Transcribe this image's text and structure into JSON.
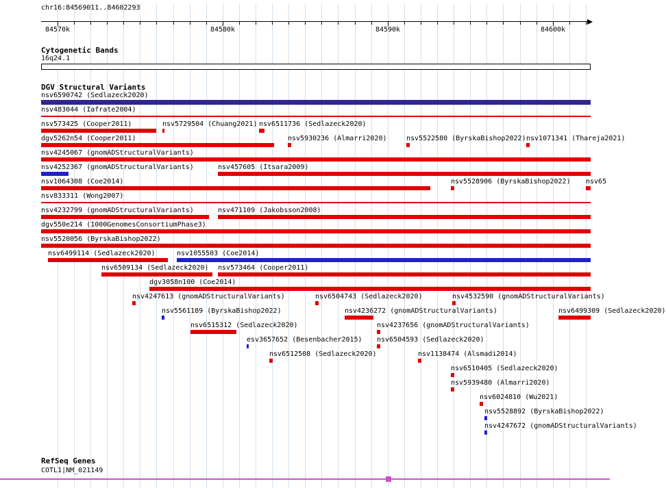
{
  "header": {
    "region": "chr16:84569011..84602293"
  },
  "colors": {
    "red": "#e00000",
    "blue": "#2020cc",
    "purple": "#2f2490",
    "magenta": "#c653c6",
    "grid": "#cee0ef",
    "axis": "#000000"
  },
  "chart_data": {
    "type": "genome-tracks",
    "title": "chr16:84569011..84602293",
    "region": {
      "chrom": "chr16",
      "start": 84569011,
      "end": 84602293
    },
    "axis": {
      "tick_interval": 1000,
      "major_tick_interval": 10000,
      "major_tick_positions": [
        84570000,
        84580000,
        84590000,
        84600000
      ],
      "major_tick_labels": [
        "84570k",
        "84580k",
        "84590k",
        "84600k"
      ],
      "grid": true
    },
    "tracks": [
      {
        "name": "Cytogenetic Bands",
        "type": "cytoband",
        "bands": [
          {
            "label": "16q24.1",
            "start": 84569011,
            "end": 84602293,
            "stain": "gneg"
          }
        ]
      },
      {
        "name": "DGV Structural Variants",
        "type": "variants",
        "rows": [
          [
            {
              "id": "nsv6590742 (Sedlazeck2020)",
              "start": 84569011,
              "end": 84602293,
              "color": "purple",
              "h": 7
            }
          ],
          [
            {
              "id": "nsv483044 (Iafrate2004)",
              "start": 84569011,
              "end": 84602293,
              "color": "red",
              "h": 2
            }
          ],
          [
            {
              "id": "nsv573425 (Cooper2011)",
              "start": 84569011,
              "end": 84575980,
              "color": "red"
            },
            {
              "id": "nsv5729504 (Chuang2021)",
              "start": 84576360,
              "end": 84576480,
              "color": "red"
            },
            {
              "id": "nsv6511736 (Sedlazeck2020)",
              "start": 84582210,
              "end": 84582540,
              "color": "red"
            }
          ],
          [
            {
              "id": "dgv5262n54 (Cooper2011)",
              "start": 84569011,
              "end": 84583120,
              "color": "red"
            },
            {
              "id": "nsv5930236 (Almarri2020)",
              "start": 84583950,
              "end": 84584160,
              "color": "red"
            },
            {
              "id": "nsv5522580 (ByrskaBishop2022)",
              "start": 84591130,
              "end": 84591340,
              "color": "red"
            },
            {
              "id": "nsv1071341 (Thareja2021)",
              "start": 84598390,
              "end": 84598600,
              "color": "red"
            }
          ],
          [
            {
              "id": "nsv4245067 (gnomADStructuralVariants)",
              "start": 84569011,
              "end": 84602293,
              "color": "red"
            }
          ],
          [
            {
              "id": "nsv4252367 (gnomADStructuralVariants)",
              "start": 84569011,
              "end": 84570670,
              "color": "blue"
            },
            {
              "id": "nsv457605 (Itsara2009)",
              "start": 84579720,
              "end": 84602293,
              "color": "red"
            }
          ],
          [
            {
              "id": "nsv1064308 (Coe2014)",
              "start": 84569011,
              "end": 84592580,
              "color": "red"
            },
            {
              "id": "nsv5528906 (ByrskaBishop2022)",
              "start": 84593830,
              "end": 84594030,
              "color": "red"
            },
            {
              "id": "nsv65",
              "start": 84602000,
              "end": 84602293,
              "color": "red"
            }
          ],
          [
            {
              "id": "nsv833311 (Wong2007)",
              "start": 84569011,
              "end": 84602293,
              "color": "red",
              "h": 2
            }
          ],
          [
            {
              "id": "nsv4232799 (gnomADStructuralVariants)",
              "start": 84569011,
              "end": 84579180,
              "color": "red"
            },
            {
              "id": "nsv471109 (Jakobsson2008)",
              "start": 84579720,
              "end": 84602293,
              "color": "red"
            }
          ],
          [
            {
              "id": "dgv550e214 (1000GenomesConsortiumPhase3)",
              "start": 84569011,
              "end": 84602293,
              "color": "red"
            }
          ],
          [
            {
              "id": "nsv5520056 (ByrskaBishop2022)",
              "start": 84569011,
              "end": 84602293,
              "color": "red"
            }
          ],
          [
            {
              "id": "nsv6499114 (Sedlazeck2020)",
              "start": 84569430,
              "end": 84576690,
              "color": "red"
            },
            {
              "id": "nsv1055503 (Coe2014)",
              "start": 84577230,
              "end": 84602293,
              "color": "blue"
            }
          ],
          [
            {
              "id": "nsv6509134 (Sedlazeck2020)",
              "start": 84572660,
              "end": 84579390,
              "color": "red"
            },
            {
              "id": "nsv573464 (Cooper2011)",
              "start": 84579720,
              "end": 84602293,
              "color": "red"
            }
          ],
          [
            {
              "id": "dgv3058n100 (Coe2014)",
              "start": 84575570,
              "end": 84602293,
              "color": "red"
            }
          ],
          [
            {
              "id": "nsv4247613 (gnomADStructuralVariants)",
              "start": 84574530,
              "end": 84574740,
              "color": "red"
            },
            {
              "id": "nsv6504743 (Sedlazeck2020)",
              "start": 84585610,
              "end": 84585820,
              "color": "red"
            },
            {
              "id": "nsv4532590 (gnomADStructuralVariants)",
              "start": 84593910,
              "end": 84594120,
              "color": "red"
            }
          ],
          [
            {
              "id": "nsv5561189 (ByrskaBishop2022)",
              "start": 84576310,
              "end": 84576480,
              "color": "blue"
            },
            {
              "id": "nsv4236272 (gnomADStructuralVariants)",
              "start": 84587400,
              "end": 84589140,
              "color": "red"
            },
            {
              "id": "nsv6499309 (Sedlazeck2020)",
              "start": 84600340,
              "end": 84602293,
              "color": "red"
            }
          ],
          [
            {
              "id": "nsv6515312 (Sedlazeck2020)",
              "start": 84578060,
              "end": 84580840,
              "color": "red"
            },
            {
              "id": "nsv4237656 (gnomADStructuralVariants)",
              "start": 84589350,
              "end": 84589550,
              "color": "red"
            }
          ],
          [
            {
              "id": "esv3657652 (Besenbacher2015)",
              "start": 84581460,
              "end": 84581590,
              "color": "blue"
            },
            {
              "id": "nsv6504593 (Sedlazeck2020)",
              "start": 84589350,
              "end": 84589550,
              "color": "red"
            }
          ],
          [
            {
              "id": "nsv6512508 (Sedlazeck2020)",
              "start": 84582830,
              "end": 84583040,
              "color": "red"
            },
            {
              "id": "nsv1138474 (Alsmadi2014)",
              "start": 84591840,
              "end": 84592040,
              "color": "red"
            }
          ],
          [
            {
              "id": "nsv6510405 (Sedlazeck2020)",
              "start": 84593830,
              "end": 84594030,
              "color": "red"
            }
          ],
          [
            {
              "id": "nsv5939480 (Almarri2020)",
              "start": 84593830,
              "end": 84594030,
              "color": "red"
            }
          ],
          [
            {
              "id": "nsv6024810 (Wu2021)",
              "start": 84595570,
              "end": 84595780,
              "color": "red"
            }
          ],
          [
            {
              "id": "nsv5528892 (ByrskaBishop2022)",
              "start": 84595860,
              "end": 84596030,
              "color": "blue"
            }
          ],
          [
            {
              "id": "nsv4247672 (gnomADStructuralVariants)",
              "start": 84595860,
              "end": 84596030,
              "color": "blue"
            }
          ]
        ]
      },
      {
        "name": "RefSeq Genes",
        "type": "gene",
        "genes": [
          {
            "label": "COTL1|NM_021149",
            "start": 84569011,
            "end": 84602293,
            "exons": [
              {
                "start": 84589890,
                "end": 84590220
              }
            ]
          }
        ]
      }
    ]
  }
}
